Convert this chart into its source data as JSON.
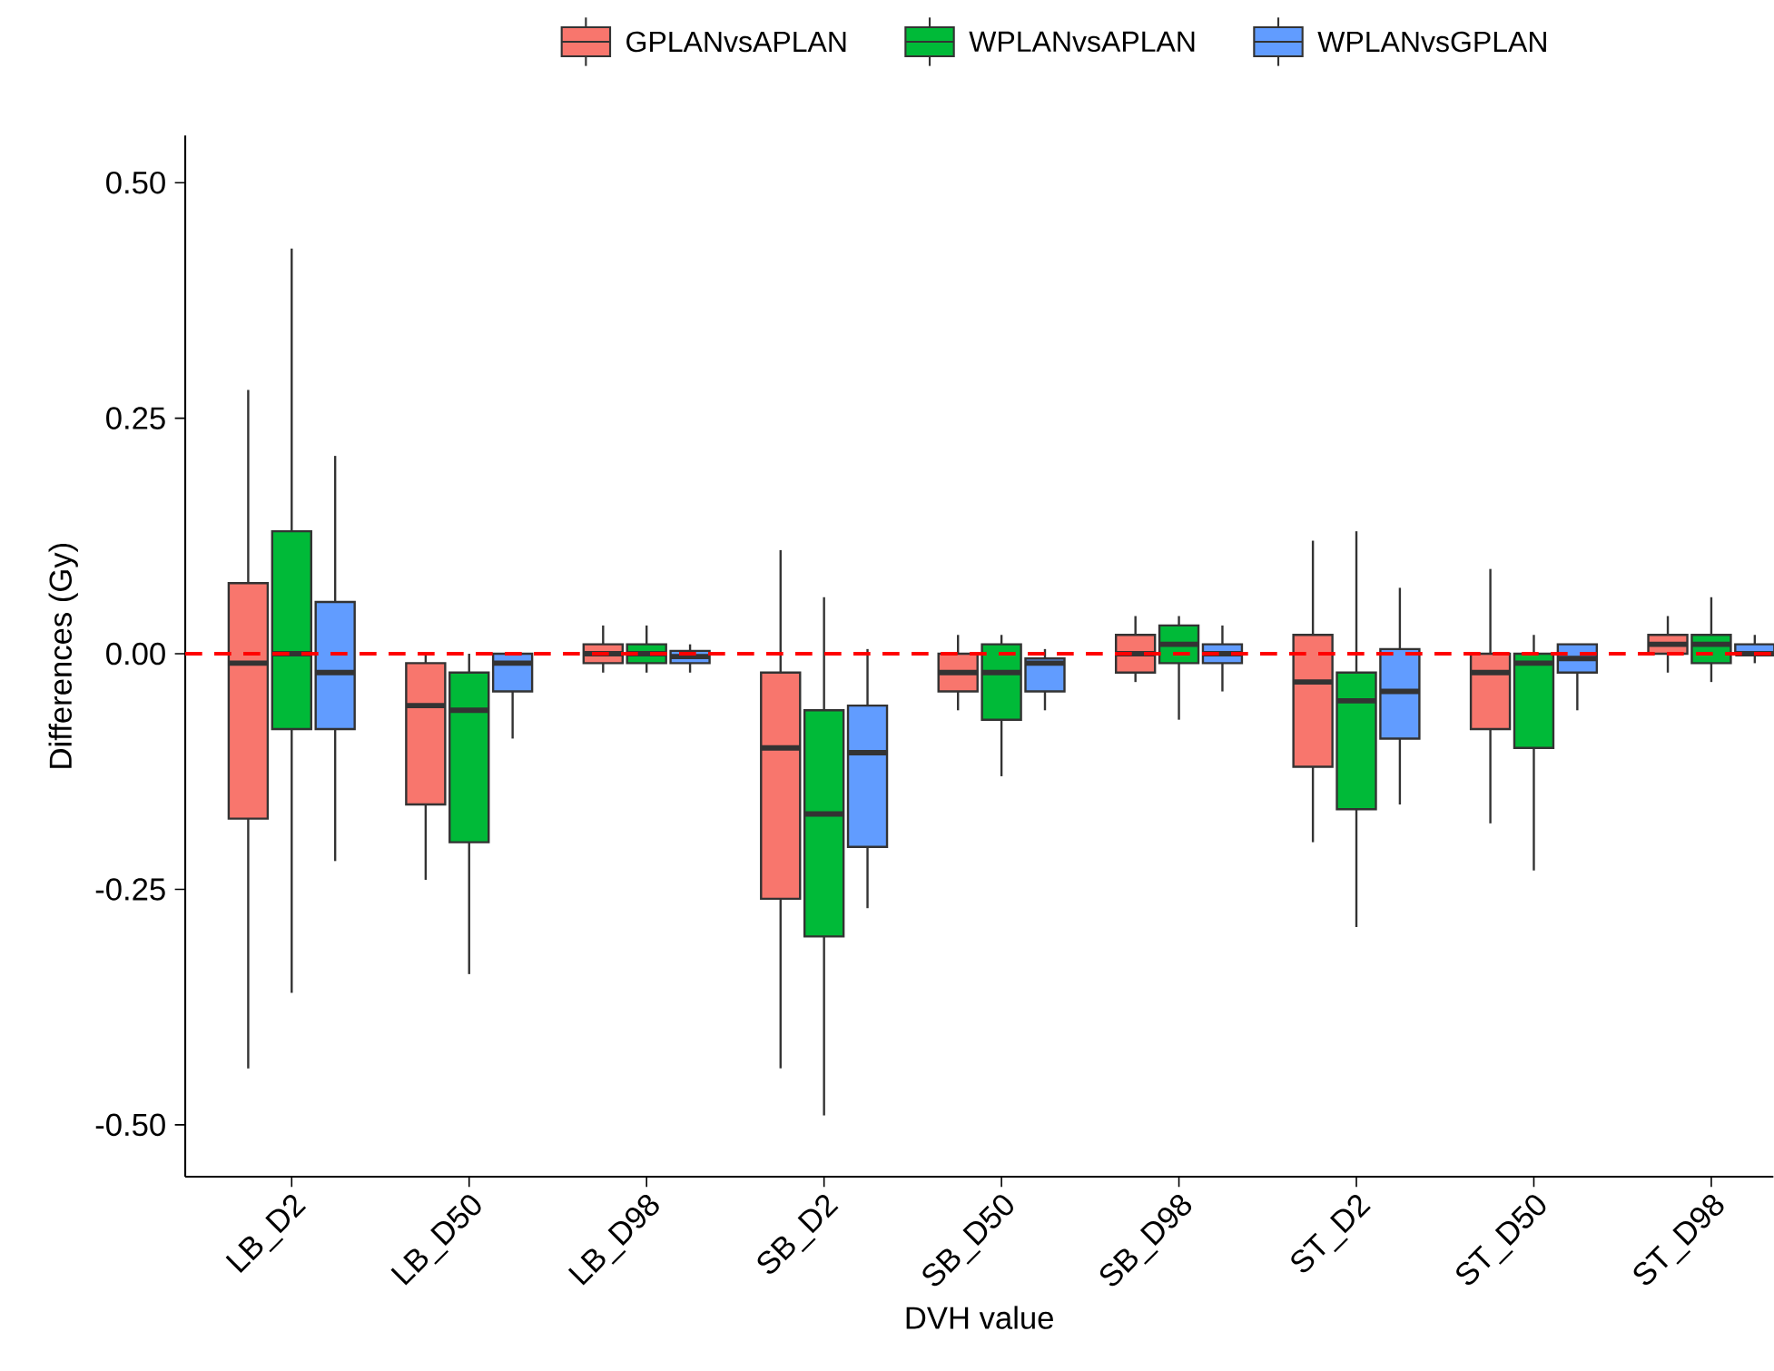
{
  "chart_data": {
    "type": "box",
    "xlabel": "DVH value",
    "ylabel": "Differences (Gy)",
    "legend": "top",
    "categories": [
      "LB_D2",
      "LB_D50",
      "LB_D98",
      "SB_D2",
      "SB_D50",
      "SB_D98",
      "ST_D2",
      "ST_D50",
      "ST_D98"
    ],
    "ylim": [
      -0.555,
      0.55
    ],
    "yticks": [
      {
        "value": -0.5,
        "label": "-0.50"
      },
      {
        "value": -0.25,
        "label": "-0.25"
      },
      {
        "value": 0,
        "label": "0.00"
      },
      {
        "value": 0.25,
        "label": "0.25"
      },
      {
        "value": 0.5,
        "label": "0.50"
      }
    ],
    "ref_lines": [
      {
        "axis": "y",
        "value": 0,
        "color": "#ff0000",
        "line_style": "dashed"
      }
    ],
    "series": [
      {
        "name": "GPLANvsAPLAN",
        "color": "#f8766d",
        "boxes": [
          {
            "low": -0.44,
            "q1": -0.175,
            "median": -0.01,
            "q3": 0.075,
            "high": 0.28
          },
          {
            "low": -0.24,
            "q1": -0.16,
            "median": -0.055,
            "q3": -0.01,
            "high": 0.0
          },
          {
            "low": -0.02,
            "q1": -0.01,
            "median": 0.0,
            "q3": 0.01,
            "high": 0.03
          },
          {
            "low": -0.44,
            "q1": -0.26,
            "median": -0.1,
            "q3": -0.02,
            "high": 0.11
          },
          {
            "low": -0.06,
            "q1": -0.04,
            "median": -0.02,
            "q3": 0.0,
            "high": 0.02
          },
          {
            "low": -0.03,
            "q1": -0.02,
            "median": 0.0,
            "q3": 0.02,
            "high": 0.04
          },
          {
            "low": -0.2,
            "q1": -0.12,
            "median": -0.03,
            "q3": 0.02,
            "high": 0.12
          },
          {
            "low": -0.18,
            "q1": -0.08,
            "median": -0.02,
            "q3": 0.0,
            "high": 0.09
          },
          {
            "low": -0.02,
            "q1": 0.0,
            "median": 0.01,
            "q3": 0.02,
            "high": 0.04
          }
        ]
      },
      {
        "name": "WPLANvsAPLAN",
        "color": "#00ba38",
        "boxes": [
          {
            "low": -0.36,
            "q1": -0.08,
            "median": 0.0,
            "q3": 0.13,
            "high": 0.43
          },
          {
            "low": -0.34,
            "q1": -0.2,
            "median": -0.06,
            "q3": -0.02,
            "high": 0.0
          },
          {
            "low": -0.02,
            "q1": -0.01,
            "median": 0.0,
            "q3": 0.01,
            "high": 0.03
          },
          {
            "low": -0.49,
            "q1": -0.3,
            "median": -0.17,
            "q3": -0.06,
            "high": 0.06
          },
          {
            "low": -0.13,
            "q1": -0.07,
            "median": -0.02,
            "q3": 0.01,
            "high": 0.02
          },
          {
            "low": -0.07,
            "q1": -0.01,
            "median": 0.01,
            "q3": 0.03,
            "high": 0.04
          },
          {
            "low": -0.29,
            "q1": -0.165,
            "median": -0.05,
            "q3": -0.02,
            "high": 0.13
          },
          {
            "low": -0.23,
            "q1": -0.1,
            "median": -0.01,
            "q3": 0.0,
            "high": 0.02
          },
          {
            "low": -0.03,
            "q1": -0.01,
            "median": 0.01,
            "q3": 0.02,
            "high": 0.06
          }
        ]
      },
      {
        "name": "WPLANvsGPLAN",
        "color": "#619cff",
        "boxes": [
          {
            "low": -0.22,
            "q1": -0.08,
            "median": -0.02,
            "q3": 0.055,
            "high": 0.21
          },
          {
            "low": -0.09,
            "q1": -0.04,
            "median": -0.01,
            "q3": 0.0,
            "high": 0.0
          },
          {
            "low": -0.02,
            "q1": -0.01,
            "median": -0.003,
            "q3": 0.003,
            "high": 0.01
          },
          {
            "low": -0.27,
            "q1": -0.205,
            "median": -0.105,
            "q3": -0.055,
            "high": 0.005
          },
          {
            "low": -0.06,
            "q1": -0.04,
            "median": -0.01,
            "q3": -0.005,
            "high": 0.005
          },
          {
            "low": -0.04,
            "q1": -0.01,
            "median": 0.0,
            "q3": 0.01,
            "high": 0.03
          },
          {
            "low": -0.16,
            "q1": -0.09,
            "median": -0.04,
            "q3": 0.005,
            "high": 0.07
          },
          {
            "low": -0.06,
            "q1": -0.02,
            "median": -0.005,
            "q3": 0.01,
            "high": 0.01
          },
          {
            "low": -0.01,
            "q1": 0.0,
            "median": 0.0,
            "q3": 0.01,
            "high": 0.02
          }
        ]
      }
    ]
  }
}
